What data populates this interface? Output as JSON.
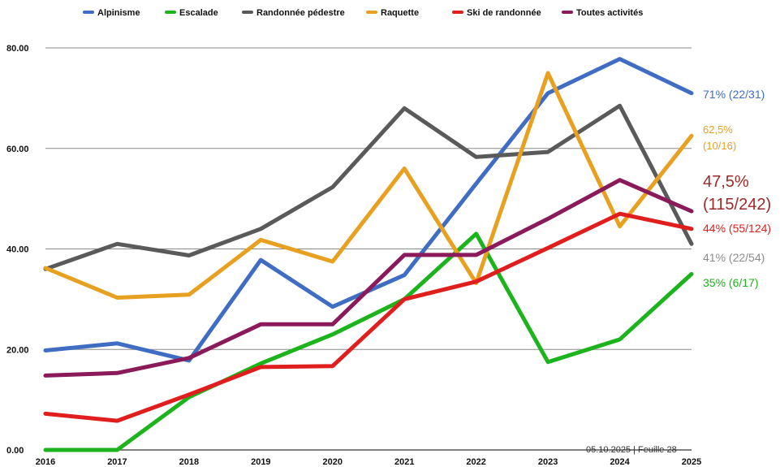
{
  "chart_data": {
    "type": "line",
    "title": "",
    "xlabel": "",
    "ylabel": "",
    "x": [
      "2016",
      "2017",
      "2018",
      "2019",
      "2020",
      "2021",
      "2022",
      "2023",
      "2024",
      "2025"
    ],
    "ylim": [
      0,
      80
    ],
    "yticks": [
      "0.00",
      "20.00",
      "40.00",
      "60.00",
      "80.00"
    ],
    "grid": "horizontal",
    "legend_position": "top",
    "series": [
      {
        "name": "Alpinisme",
        "color": "#3f6dc4",
        "values": [
          19.8,
          21.2,
          17.8,
          37.8,
          28.5,
          34.8,
          53.0,
          71.0,
          77.8,
          71.0
        ],
        "label": "71% (22/31)"
      },
      {
        "name": "Escalade",
        "color": "#1db31d",
        "values": [
          0.0,
          0.0,
          10.5,
          17.2,
          23.0,
          30.0,
          43.0,
          17.5,
          22.0,
          35.0
        ],
        "label": "35% (6/17)"
      },
      {
        "name": "Randonnée pédestre",
        "color": "#5a5a5a",
        "values": [
          36.0,
          41.0,
          38.7,
          44.0,
          52.3,
          68.0,
          58.3,
          59.3,
          68.5,
          41.0
        ],
        "label": "41% (22/54)"
      },
      {
        "name": "Raquette",
        "color": "#e8a020",
        "values": [
          36.2,
          30.3,
          30.9,
          41.8,
          37.5,
          56.0,
          33.2,
          75.0,
          44.5,
          62.5
        ],
        "label_lines": [
          "62,5%",
          "(10/16)"
        ]
      },
      {
        "name": "Ski de randonnée",
        "color": "#e01e1e",
        "values": [
          7.2,
          5.8,
          11.0,
          16.5,
          16.7,
          30.0,
          33.5,
          40.2,
          47.0,
          44.0
        ],
        "label": "44% (55/124)"
      },
      {
        "name": "Toutes activités",
        "color": "#8a1a5a",
        "values": [
          14.8,
          15.3,
          18.3,
          25.0,
          25.0,
          38.8,
          38.8,
          46.0,
          53.7,
          47.5
        ],
        "label_lines": [
          "47,5%",
          "(115/242)"
        ]
      }
    ]
  },
  "footer": "05.10.2025 |   Feuille 28",
  "annotation_colors": {
    "alpinisme": "#3f6dc4",
    "escalade": "#1db31d",
    "randonnee": "#8c8c8c",
    "raquette": "#e8a020",
    "ski": "#e01e1e",
    "toutes": "#9b2a2a"
  }
}
